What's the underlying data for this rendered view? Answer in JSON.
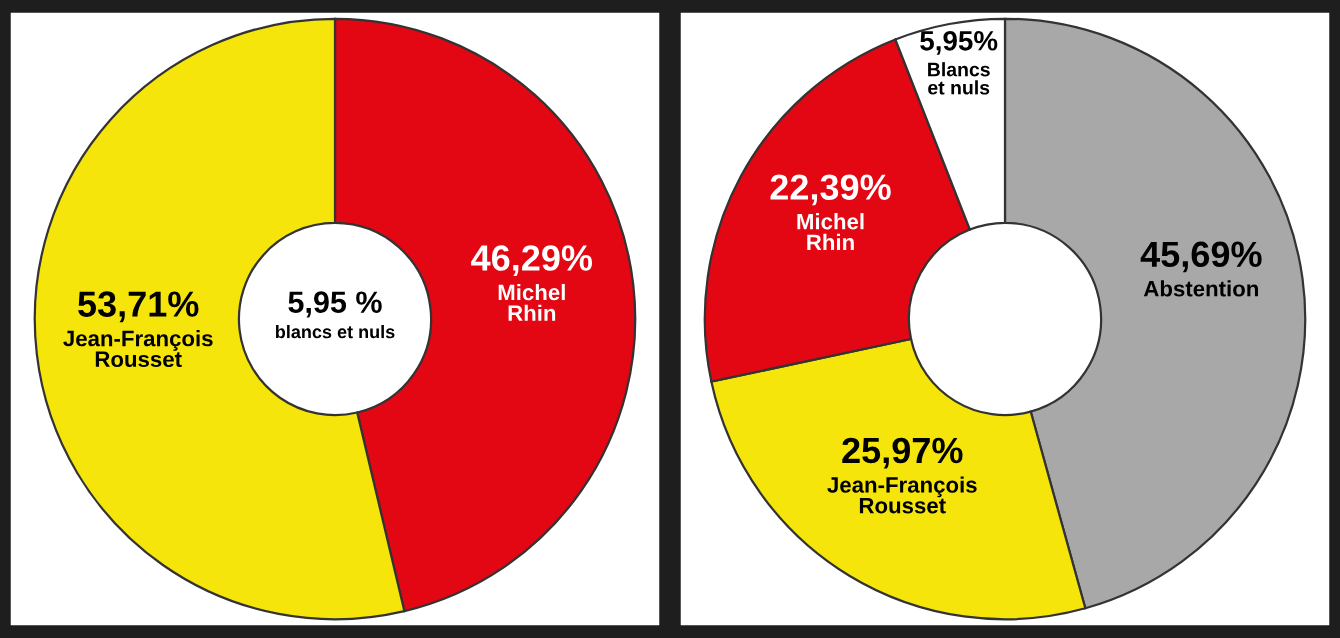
{
  "chart_data": [
    {
      "type": "donut",
      "categories": [
        "Michel\nRhin",
        "Jean-François\nRousset"
      ],
      "values": [
        46.29,
        53.71
      ],
      "value_labels": [
        "46,29%",
        "53,71%"
      ],
      "colors": [
        "#e30613",
        "#f5e50a"
      ],
      "annotations": [
        "5,95 %\nblancs et nuls"
      ]
    },
    {
      "type": "donut",
      "categories": [
        "Abstention",
        "Jean-François\nRousset",
        "Michel\nRhin",
        "Blancs\net nuls"
      ],
      "values": [
        45.69,
        25.97,
        22.39,
        5.95
      ],
      "value_labels": [
        "45,69%",
        "25,97%",
        "22,39%",
        "5,95%"
      ],
      "colors": [
        "#a8a8a8",
        "#f5e50a",
        "#e30613",
        "#ffffff"
      ]
    }
  ]
}
